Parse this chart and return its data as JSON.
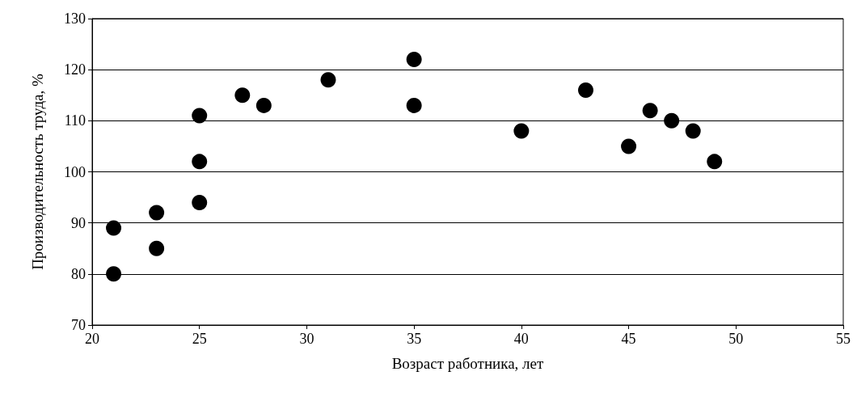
{
  "chart_data": {
    "type": "scatter",
    "xlabel": "Возраст работника, лет",
    "ylabel": "Производительность труда, %",
    "x": [
      21,
      21,
      23,
      23,
      25,
      25,
      25,
      27,
      28,
      31,
      35,
      35,
      40,
      43,
      45,
      46,
      47,
      48,
      49
    ],
    "values": [
      89,
      80,
      92,
      85,
      111,
      102,
      94,
      115,
      113,
      118,
      122,
      113,
      108,
      116,
      105,
      112,
      110,
      108,
      102
    ],
    "color": "#000000",
    "marker": "circle",
    "grid": "y",
    "xlim": [
      20,
      55
    ],
    "xticks": [
      20,
      25,
      30,
      35,
      40,
      45,
      50,
      55
    ],
    "ylim": [
      70,
      130
    ],
    "yticks": [
      70,
      80,
      90,
      100,
      110,
      120,
      130
    ]
  }
}
